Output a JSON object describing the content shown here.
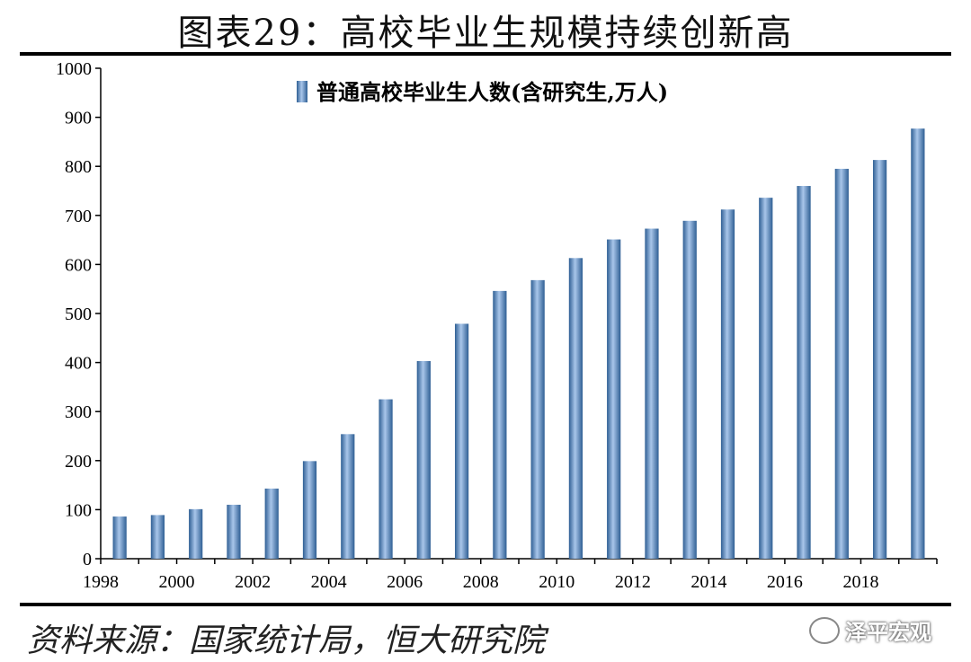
{
  "header": {
    "title": "图表29：高校毕业生规模持续创新高"
  },
  "footer": {
    "source": "资料来源：国家统计局，恒大研究院",
    "watermark": "泽平宏观",
    "watermark_icon": "wechat-icon"
  },
  "chart_data": {
    "type": "bar",
    "x": [
      1998,
      1999,
      2000,
      2001,
      2002,
      2003,
      2004,
      2005,
      2006,
      2007,
      2008,
      2009,
      2010,
      2011,
      2012,
      2013,
      2014,
      2015,
      2016,
      2017,
      2018,
      2019
    ],
    "series": [
      {
        "name": "普通高校毕业生人数(含研究生,万人)",
        "values": [
          86,
          89,
          101,
          110,
          143,
          199,
          254,
          325,
          403,
          479,
          546,
          568,
          613,
          651,
          673,
          689,
          712,
          736,
          760,
          795,
          813,
          877
        ]
      }
    ],
    "x_tick_labels": [
      "1998",
      "2000",
      "2002",
      "2004",
      "2006",
      "2008",
      "2010",
      "2012",
      "2014",
      "2016",
      "2018"
    ],
    "y_ticks": [
      0,
      100,
      200,
      300,
      400,
      500,
      600,
      700,
      800,
      900,
      1000
    ],
    "ylim": [
      0,
      1000
    ],
    "grid": false,
    "legend_position": "top",
    "bar_color": "#4f81bd",
    "bar_highlight": "#a9c6ea",
    "bar_shadow": "#2f5f94"
  }
}
